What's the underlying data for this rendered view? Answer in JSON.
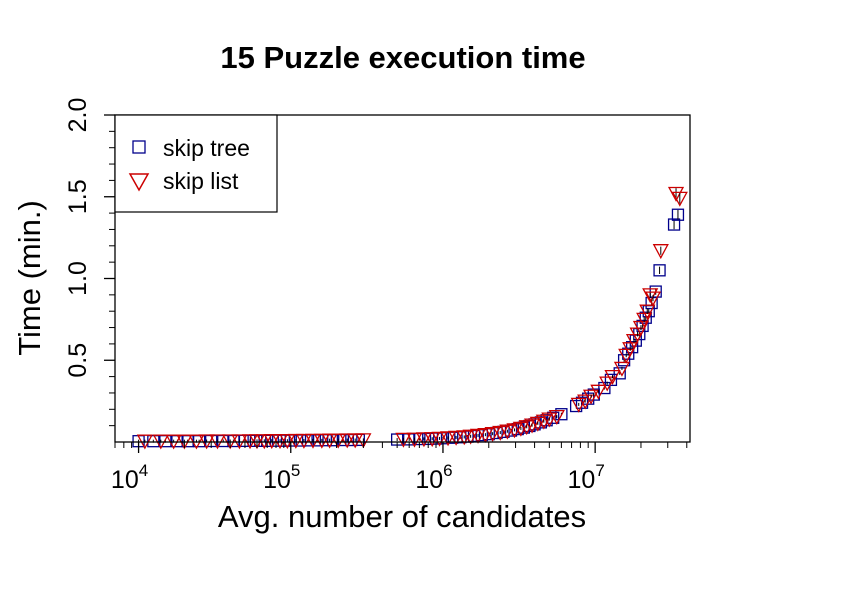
{
  "chart_data": {
    "type": "scatter",
    "title": "15 Puzzle execution time",
    "xlabel": "Avg. number of candidates",
    "ylabel": "Time (min.)",
    "x_scale": "log10",
    "xlim": [
      7000,
      42000000
    ],
    "ylim": [
      0,
      2.0
    ],
    "x_ticks": [
      {
        "value": 10000,
        "base": "10",
        "exp": "4"
      },
      {
        "value": 100000,
        "base": "10",
        "exp": "5"
      },
      {
        "value": 1000000,
        "base": "10",
        "exp": "6"
      },
      {
        "value": 10000000,
        "base": "10",
        "exp": "7"
      }
    ],
    "y_ticks": [
      {
        "value": 0.5,
        "label": "0.5"
      },
      {
        "value": 1.0,
        "label": "1.0"
      },
      {
        "value": 1.5,
        "label": "1.5"
      },
      {
        "value": 2.0,
        "label": "2.0"
      }
    ],
    "grid": false,
    "legend_position": "top-left",
    "series": [
      {
        "name": "skip tree",
        "marker": "square",
        "color": "#00008B",
        "x": [
          10000,
          12500,
          15000,
          18000,
          21000,
          25000,
          30000,
          36000,
          42000,
          50000,
          57000,
          63000,
          70000,
          80000,
          90000,
          100000,
          115000,
          130000,
          150000,
          170000,
          190000,
          220000,
          250000,
          280000,
          500000,
          600000,
          700000,
          800000,
          900000,
          1000000,
          1150000,
          1300000,
          1450000,
          1600000,
          1800000,
          2000000,
          2250000,
          2500000,
          2800000,
          3100000,
          3400000,
          3700000,
          4000000,
          4400000,
          4800000,
          5300000,
          6000000,
          7500000,
          8200000,
          9000000,
          9800000,
          11500000,
          12700000,
          14500000,
          15500000,
          16500000,
          17500000,
          18500000,
          19500000,
          20500000,
          21500000,
          22500000,
          23500000,
          25000000,
          26500000,
          33000000,
          35000000
        ],
        "y": [
          0.005,
          0.005,
          0.005,
          0.005,
          0.005,
          0.005,
          0.006,
          0.006,
          0.006,
          0.007,
          0.007,
          0.007,
          0.007,
          0.008,
          0.008,
          0.009,
          0.009,
          0.01,
          0.01,
          0.011,
          0.011,
          0.012,
          0.012,
          0.013,
          0.015,
          0.016,
          0.018,
          0.019,
          0.021,
          0.023,
          0.026,
          0.029,
          0.033,
          0.037,
          0.042,
          0.048,
          0.055,
          0.062,
          0.07,
          0.079,
          0.088,
          0.098,
          0.108,
          0.12,
          0.133,
          0.148,
          0.17,
          0.22,
          0.24,
          0.265,
          0.29,
          0.33,
          0.38,
          0.42,
          0.5,
          0.54,
          0.58,
          0.62,
          0.66,
          0.71,
          0.76,
          0.8,
          0.85,
          0.92,
          1.05,
          1.33,
          1.39
        ]
      },
      {
        "name": "skip list",
        "marker": "triangle-down",
        "color": "#CC0000",
        "x": [
          11000,
          14000,
          17000,
          20000,
          24000,
          28000,
          33000,
          40000,
          46000,
          54000,
          60000,
          67000,
          75000,
          85000,
          95000,
          108000,
          122000,
          140000,
          160000,
          180000,
          205000,
          235000,
          265000,
          300000,
          550000,
          650000,
          750000,
          850000,
          950000,
          1080000,
          1220000,
          1380000,
          1520000,
          1700000,
          1900000,
          2120000,
          2380000,
          2650000,
          2950000,
          3250000,
          3550000,
          3850000,
          4200000,
          4600000,
          5000000,
          5600000,
          7800000,
          8600000,
          9400000,
          10500000,
          12000000,
          13000000,
          15000000,
          16000000,
          17000000,
          18000000,
          19000000,
          20000000,
          21000000,
          22000000,
          23000000,
          24000000,
          27000000,
          34000000,
          36000000
        ],
        "y": [
          0.005,
          0.005,
          0.005,
          0.005,
          0.005,
          0.006,
          0.006,
          0.006,
          0.006,
          0.007,
          0.007,
          0.007,
          0.008,
          0.008,
          0.008,
          0.009,
          0.009,
          0.01,
          0.01,
          0.011,
          0.011,
          0.012,
          0.012,
          0.013,
          0.016,
          0.017,
          0.019,
          0.02,
          0.022,
          0.025,
          0.028,
          0.031,
          0.035,
          0.04,
          0.045,
          0.051,
          0.058,
          0.066,
          0.074,
          0.083,
          0.093,
          0.103,
          0.114,
          0.127,
          0.14,
          0.155,
          0.23,
          0.25,
          0.28,
          0.31,
          0.36,
          0.4,
          0.45,
          0.53,
          0.57,
          0.62,
          0.66,
          0.7,
          0.75,
          0.8,
          0.9,
          0.88,
          1.17,
          1.52,
          1.49
        ]
      }
    ]
  }
}
